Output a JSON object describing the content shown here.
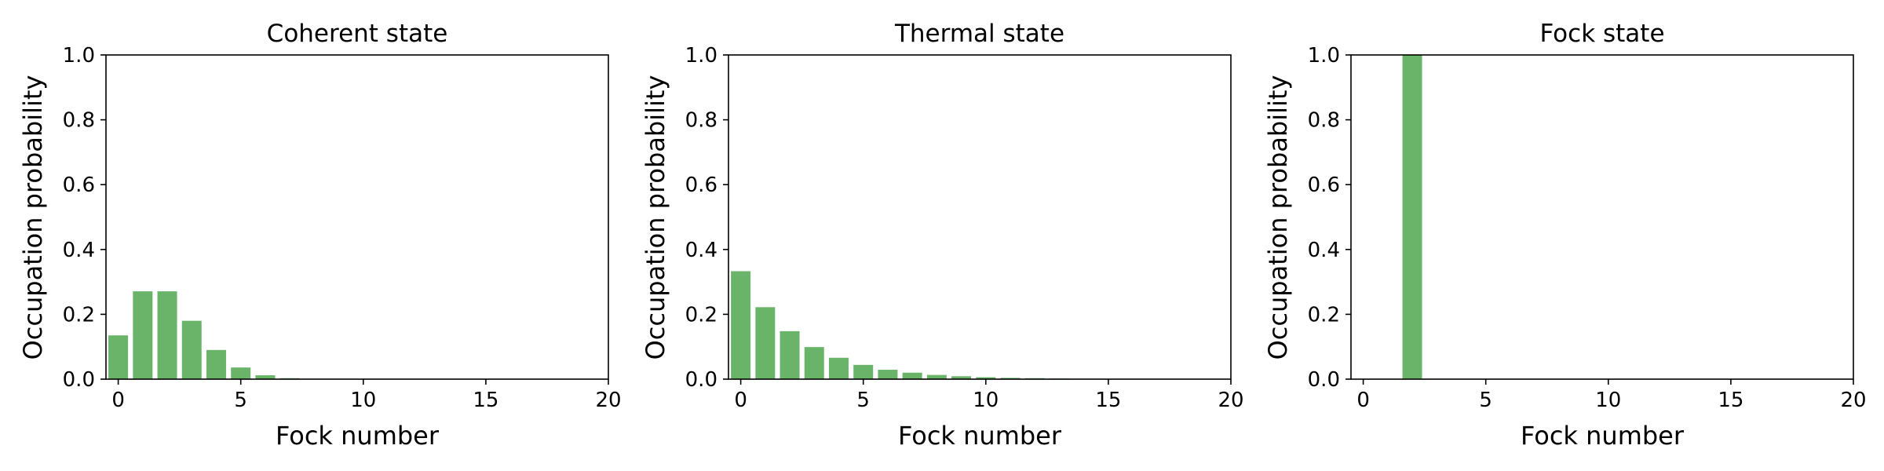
{
  "chart_data": [
    {
      "type": "bar",
      "title": "Coherent state",
      "xlabel": "Fock number",
      "ylabel": "Occupation probability",
      "xlim": [
        -0.5,
        20
      ],
      "ylim": [
        0,
        1.0
      ],
      "xticks": [
        "0",
        "5",
        "10",
        "15",
        "20"
      ],
      "yticks": [
        "0.0",
        "0.2",
        "0.4",
        "0.6",
        "0.8",
        "1.0"
      ],
      "x": [
        0,
        1,
        2,
        3,
        4,
        5,
        6,
        7,
        8,
        9,
        10,
        11,
        12,
        13,
        14,
        15,
        16,
        17,
        18,
        19
      ],
      "values": [
        0.135,
        0.271,
        0.271,
        0.18,
        0.09,
        0.036,
        0.012,
        0.003,
        0.001,
        0.0002,
        0,
        0,
        0,
        0,
        0,
        0,
        0,
        0,
        0,
        0
      ],
      "bar_color": "#6ab46a"
    },
    {
      "type": "bar",
      "title": "Thermal state",
      "xlabel": "Fock number",
      "ylabel": "Occupation probability",
      "xlim": [
        -0.5,
        20
      ],
      "ylim": [
        0,
        1.0
      ],
      "xticks": [
        "0",
        "5",
        "10",
        "15",
        "20"
      ],
      "yticks": [
        "0.0",
        "0.2",
        "0.4",
        "0.6",
        "0.8",
        "1.0"
      ],
      "x": [
        0,
        1,
        2,
        3,
        4,
        5,
        6,
        7,
        8,
        9,
        10,
        11,
        12,
        13,
        14,
        15,
        16,
        17,
        18,
        19
      ],
      "values": [
        0.333,
        0.222,
        0.148,
        0.099,
        0.066,
        0.044,
        0.029,
        0.02,
        0.013,
        0.009,
        0.006,
        0.004,
        0.003,
        0.002,
        0.001,
        0.001,
        0.0005,
        0.0003,
        0.0002,
        0.0001
      ],
      "bar_color": "#6ab46a"
    },
    {
      "type": "bar",
      "title": "Fock state",
      "xlabel": "Fock number",
      "ylabel": "Occupation probability",
      "xlim": [
        -0.5,
        20
      ],
      "ylim": [
        0,
        1.0
      ],
      "xticks": [
        "0",
        "5",
        "10",
        "15",
        "20"
      ],
      "yticks": [
        "0.0",
        "0.2",
        "0.4",
        "0.6",
        "0.8",
        "1.0"
      ],
      "x": [
        0,
        1,
        2,
        3,
        4,
        5,
        6,
        7,
        8,
        9,
        10,
        11,
        12,
        13,
        14,
        15,
        16,
        17,
        18,
        19
      ],
      "values": [
        0,
        0,
        1.0,
        0,
        0,
        0,
        0,
        0,
        0,
        0,
        0,
        0,
        0,
        0,
        0,
        0,
        0,
        0,
        0,
        0
      ],
      "bar_color": "#6ab46a"
    }
  ]
}
